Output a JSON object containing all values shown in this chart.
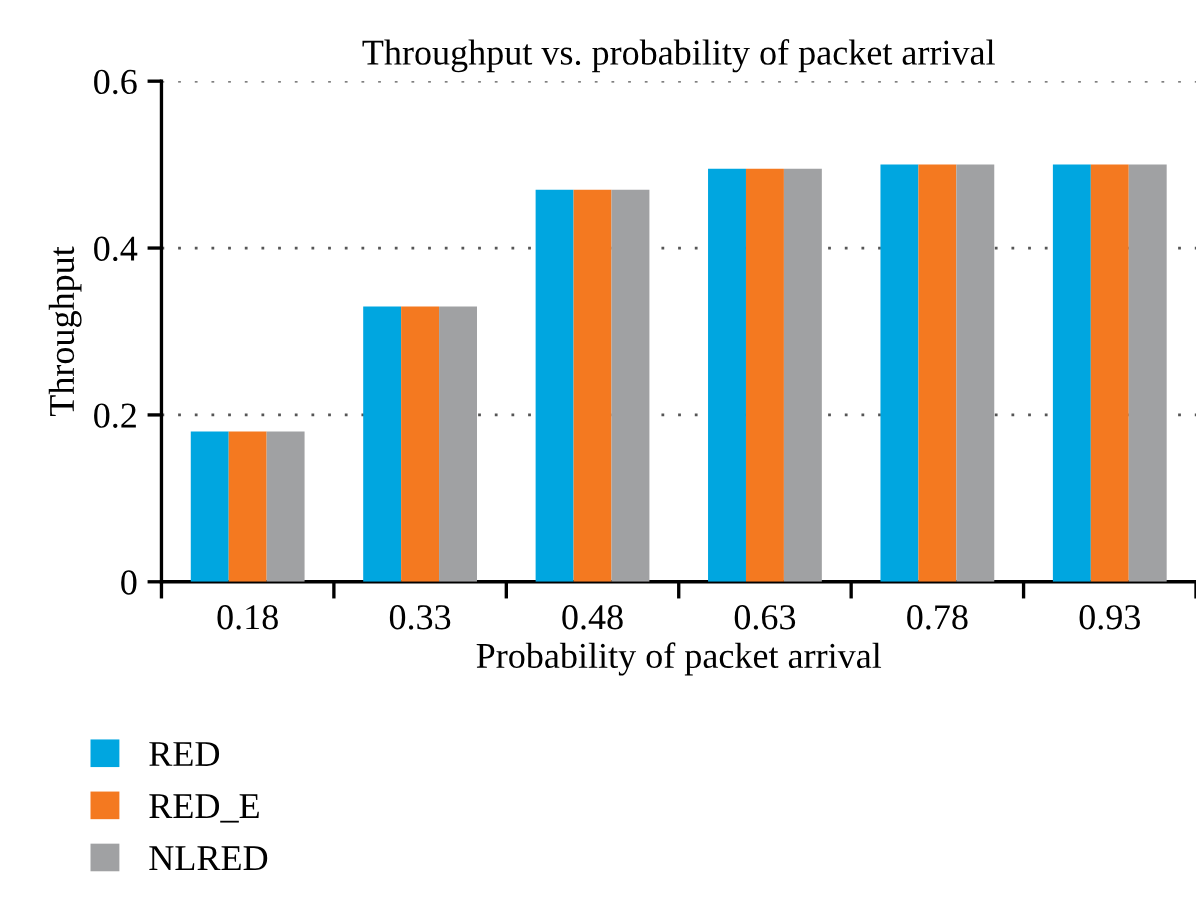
{
  "chart_data": {
    "type": "bar",
    "title": "Throughput vs. probability of packet arrival",
    "xlabel": "Probability of packet arrival",
    "ylabel": "Throughput",
    "categories": [
      "0.18",
      "0.33",
      "0.48",
      "0.63",
      "0.78",
      "0.93"
    ],
    "series": [
      {
        "name": "RED",
        "color": "#00a6e0",
        "values": [
          0.18,
          0.33,
          0.47,
          0.495,
          0.5,
          0.5
        ]
      },
      {
        "name": "RED_E",
        "color": "#f47920",
        "values": [
          0.18,
          0.33,
          0.47,
          0.495,
          0.5,
          0.5
        ]
      },
      {
        "name": "NLRED",
        "color": "#a0a1a3",
        "values": [
          0.18,
          0.33,
          0.47,
          0.495,
          0.5,
          0.5
        ]
      }
    ],
    "ylim": [
      0,
      0.6
    ],
    "yticks": [
      {
        "value": 0,
        "label": "0"
      },
      0.2,
      0.4,
      0.6
    ],
    "grid": "y",
    "legend": "bottom"
  }
}
